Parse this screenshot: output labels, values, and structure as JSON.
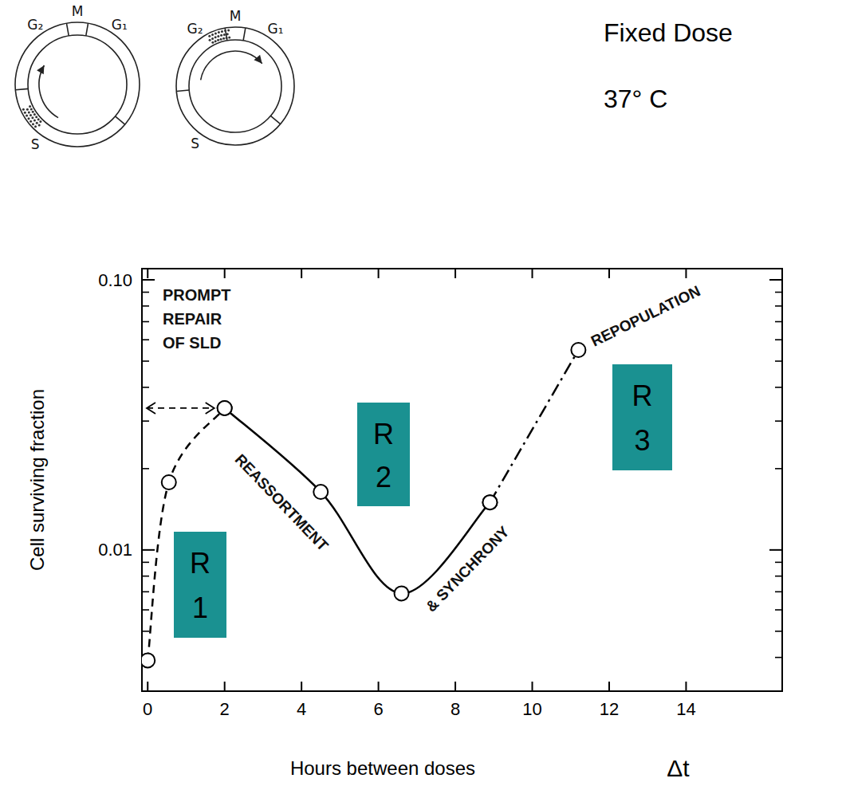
{
  "header": {
    "lines": [
      "Fixed Dose",
      "37° C"
    ]
  },
  "cell_cycle": [
    {
      "phases": [
        "G₂",
        "M",
        "G₁",
        "S"
      ]
    },
    {
      "phases": [
        "G₂",
        "M",
        "G₁",
        "S"
      ]
    }
  ],
  "chart_data": {
    "type": "line",
    "log": "y",
    "xlabel": "Hours between doses",
    "xlabel_symbol": "Δt",
    "ylabel": "Cell surviving fraction",
    "xlim": [
      -0.15,
      16.5
    ],
    "xticks": [
      0,
      2,
      4,
      6,
      8,
      10,
      12,
      14
    ],
    "ylim": [
      0.003,
      0.11
    ],
    "yticks": [
      0.01,
      {
        "value": 0.1,
        "label": "0.10"
      }
    ],
    "series": [
      {
        "name": "PROMPT REPAIR OF SLD",
        "color": "#000000",
        "line_style": "dashed",
        "marker": "circle",
        "x": [
          0,
          0.55,
          2.0
        ],
        "values": [
          0.0039,
          0.0178,
          0.0335
        ]
      },
      {
        "name": "REASSORTMENT & SYNCHRONY",
        "color": "#000000",
        "line_style": "solid",
        "marker": "circle",
        "x": [
          2.0,
          4.5,
          6.6,
          8.9
        ],
        "values": [
          0.0335,
          0.0164,
          0.0069,
          0.015
        ]
      },
      {
        "name": "REPOPULATION",
        "color": "#000000",
        "line_style": "dashdot",
        "marker": "circle",
        "x": [
          8.9,
          11.2
        ],
        "values": [
          0.015,
          0.055
        ]
      }
    ],
    "annotations": [
      {
        "text": "R1",
        "color": "#1a9191"
      },
      {
        "text": "R2",
        "color": "#1a9191"
      },
      {
        "text": "R3",
        "color": "#1a9191"
      }
    ]
  }
}
